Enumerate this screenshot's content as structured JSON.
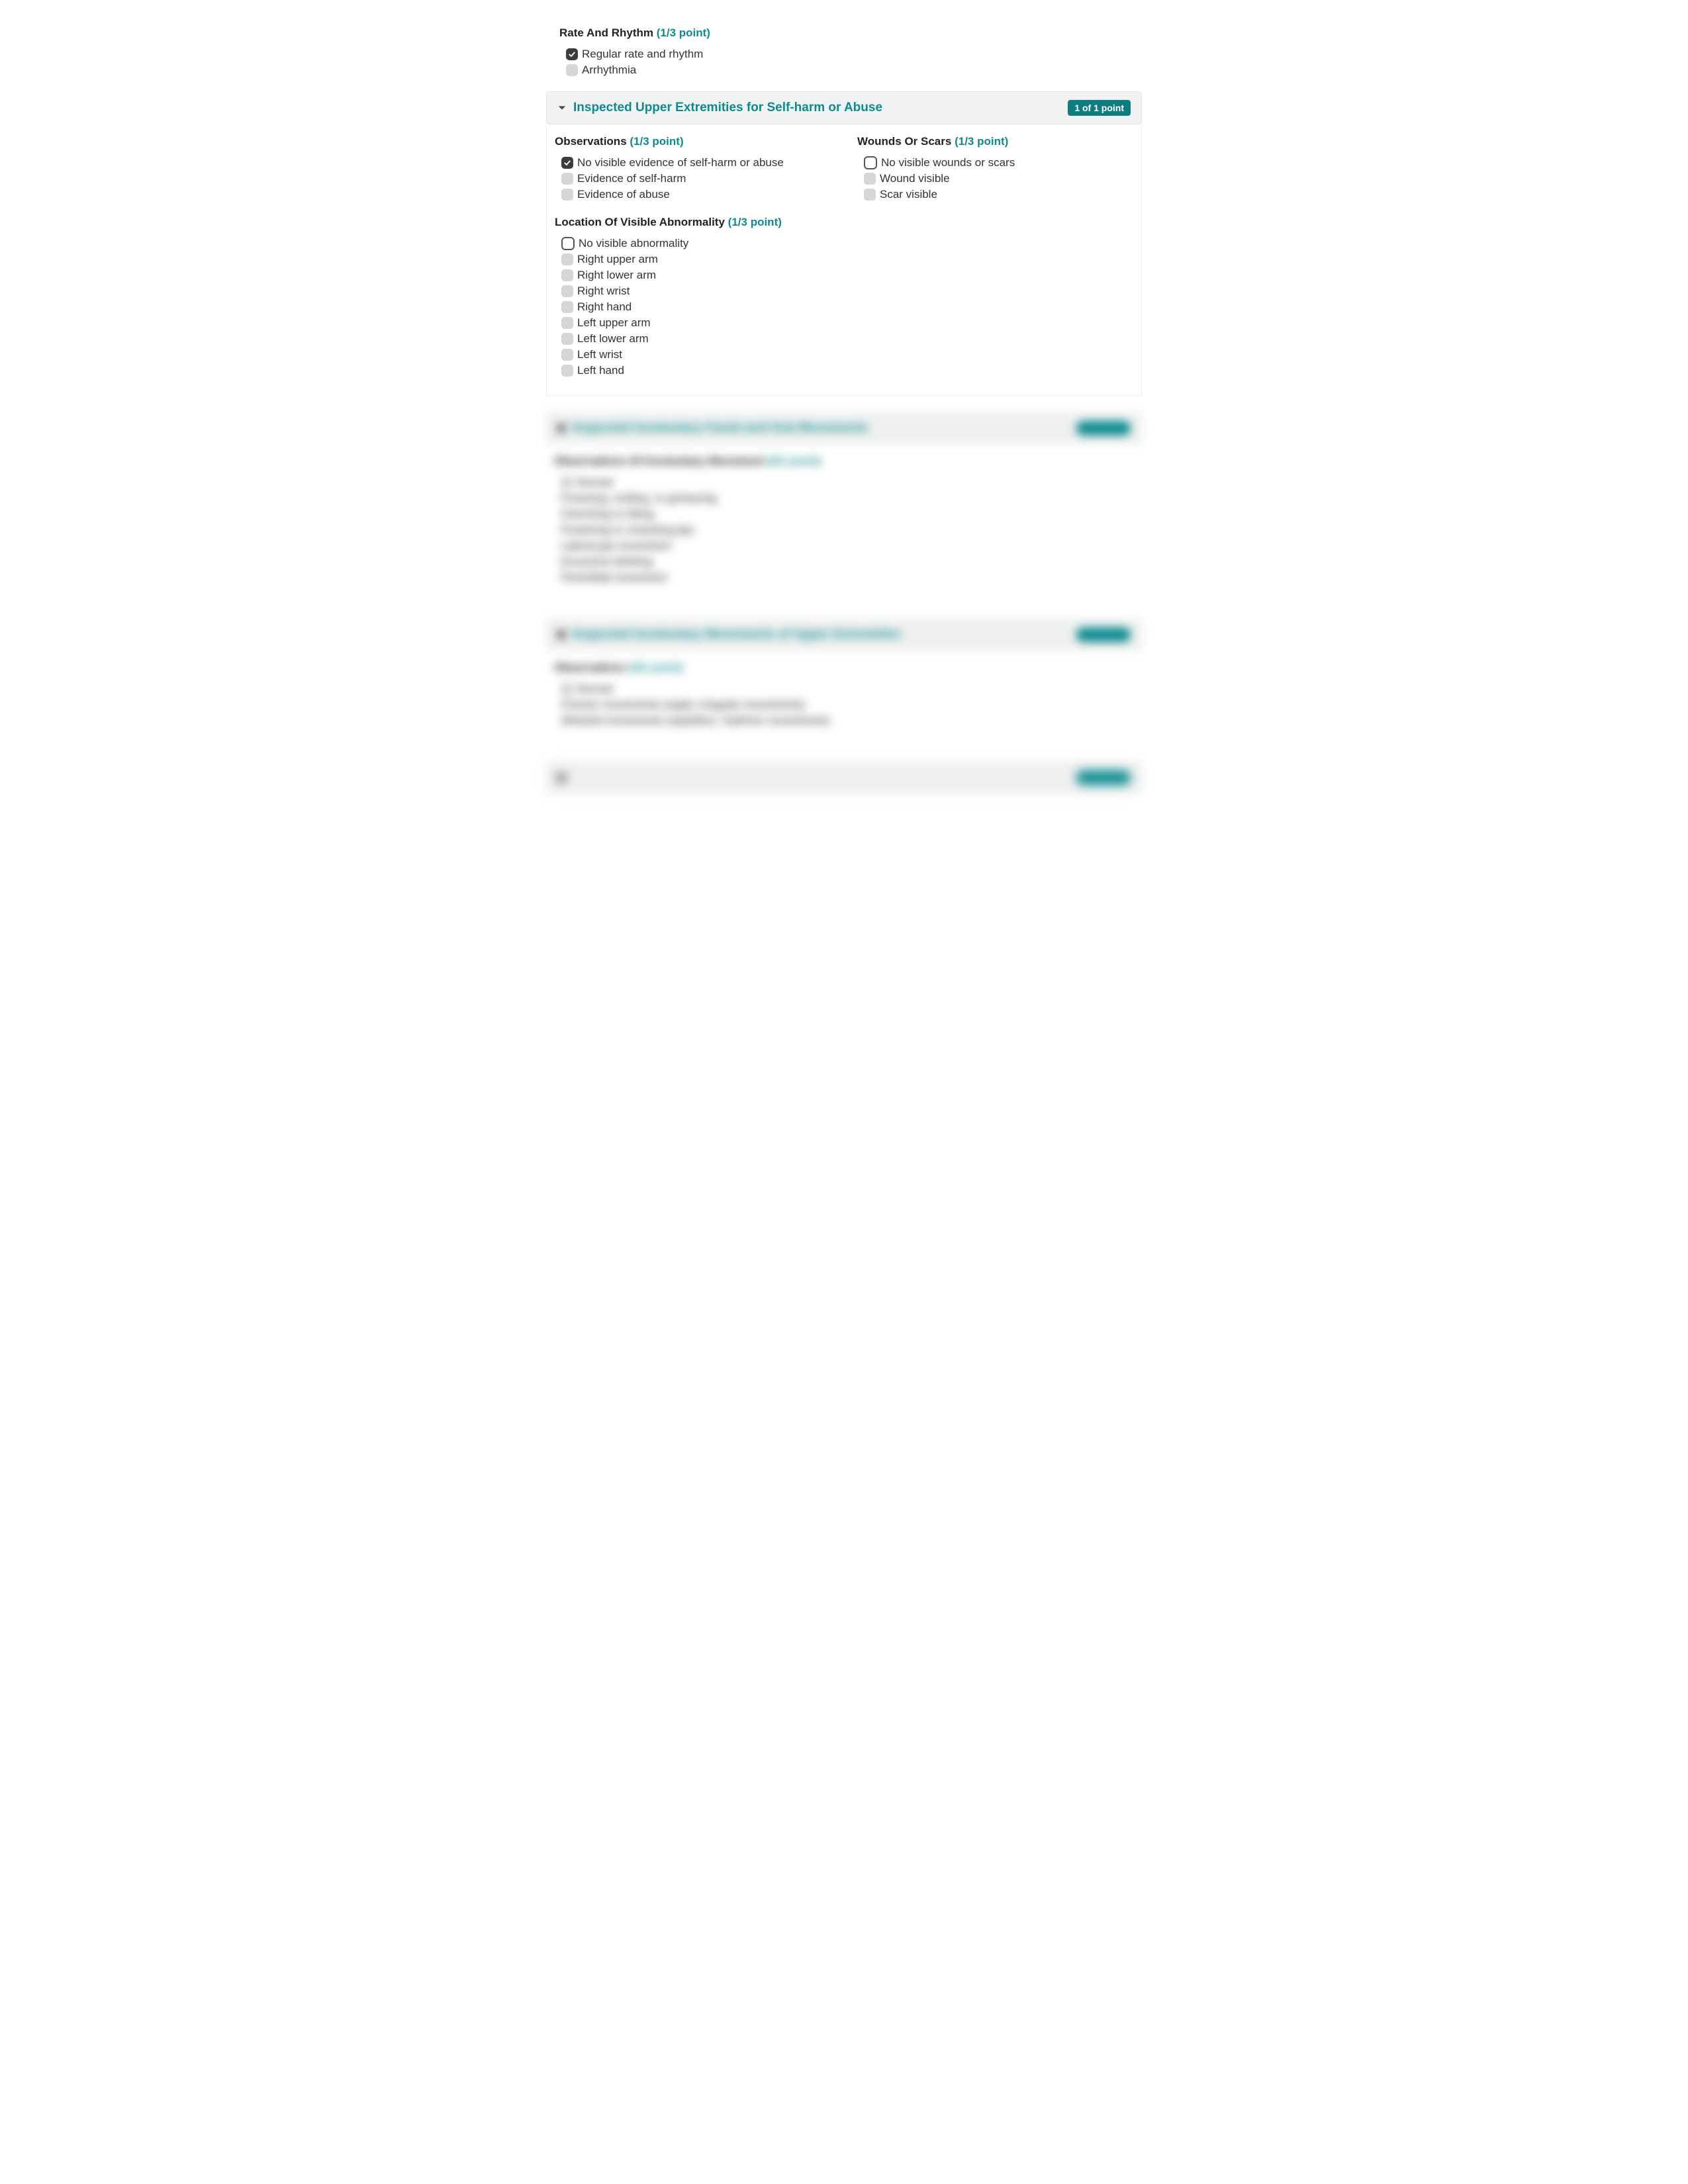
{
  "colors": {
    "teal": "#0d8a8f",
    "badge_bg": "#0d7d82",
    "checkbox_unchecked": "#d5d6d8",
    "checkbox_checked": "#3c3d3f",
    "header_bg": "#f1f2f2",
    "text": "#333333"
  },
  "rate_rhythm": {
    "title": "Rate And Rhythm",
    "pts": "(1/3 point)",
    "options": [
      {
        "label": "Regular rate and rhythm",
        "checked": true,
        "outline": false
      },
      {
        "label": "Arrhythmia",
        "checked": false,
        "outline": false
      }
    ]
  },
  "upper_ext": {
    "title": "Inspected Upper Extremities for Self-harm or Abuse",
    "badge": "1 of 1 point",
    "observations": {
      "title": "Observations",
      "pts": "(1/3 point)",
      "options": [
        {
          "label": "No visible evidence of self-harm or abuse",
          "checked": true,
          "outline": false
        },
        {
          "label": "Evidence of self-harm",
          "checked": false,
          "outline": false
        },
        {
          "label": "Evidence of abuse",
          "checked": false,
          "outline": false
        }
      ]
    },
    "wounds": {
      "title": "Wounds Or Scars",
      "pts": "(1/3 point)",
      "options": [
        {
          "label": "No visible wounds or scars",
          "checked": false,
          "outline": true
        },
        {
          "label": "Wound visible",
          "checked": false,
          "outline": false
        },
        {
          "label": "Scar visible",
          "checked": false,
          "outline": false
        }
      ]
    },
    "location": {
      "title": "Location Of Visible Abnormality",
      "pts": "(1/3 point)",
      "options": [
        {
          "label": "No visible abnormality",
          "checked": false,
          "outline": true
        },
        {
          "label": "Right upper arm",
          "checked": false,
          "outline": false
        },
        {
          "label": "Right lower arm",
          "checked": false,
          "outline": false
        },
        {
          "label": "Right wrist",
          "checked": false,
          "outline": false
        },
        {
          "label": "Right hand",
          "checked": false,
          "outline": false
        },
        {
          "label": "Left upper arm",
          "checked": false,
          "outline": false
        },
        {
          "label": "Left lower arm",
          "checked": false,
          "outline": false
        },
        {
          "label": "Left wrist",
          "checked": false,
          "outline": false
        },
        {
          "label": "Left hand",
          "checked": false,
          "outline": false
        }
      ]
    }
  },
  "blurred1": {
    "title": "Inspected Involuntary Facial and Oral Movements",
    "group_title": "Observations Of Involuntary Movement",
    "pts": "(0/1 point)",
    "options": [
      "Normal",
      "Frowning, smiling, or grimacing",
      "Clenching or biting",
      "Puckering or smacking lips",
      "Lateral jaw movement",
      "Excessive blinking",
      "Periorbital movement"
    ]
  },
  "blurred2": {
    "title": "Inspected Involuntary Movements of Upper Extremities",
    "group_title": "Observations",
    "pts": "(0/1 point)",
    "options": [
      "Normal",
      "Choreic movements (rapid, irregular movements)",
      "Athetoid movements (repetitive, rhythmic movements)"
    ]
  }
}
